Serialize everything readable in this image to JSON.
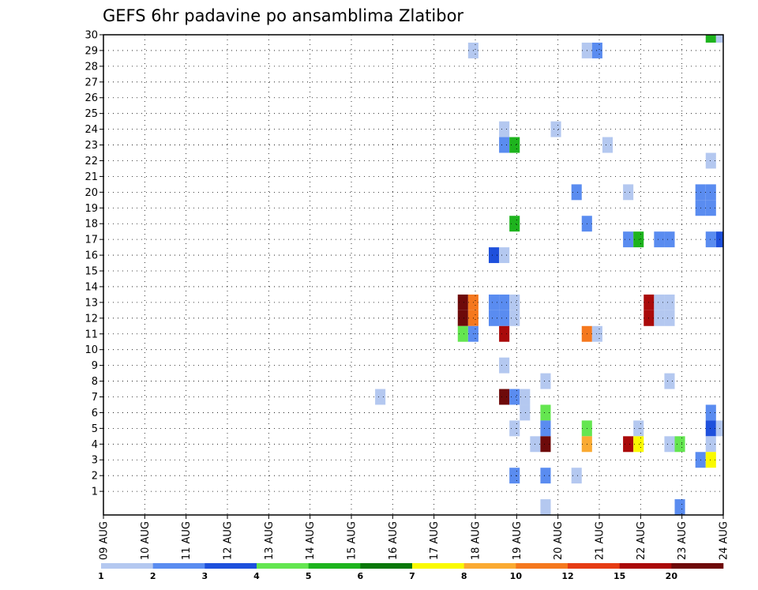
{
  "chart_data": {
    "type": "heatmap",
    "title": "GEFS 6hr padavine po ansamblima Zlatibor",
    "xlabel": "",
    "ylabel": "",
    "y_ticks": [
      1,
      2,
      3,
      4,
      5,
      6,
      7,
      8,
      9,
      10,
      11,
      12,
      13,
      14,
      15,
      16,
      17,
      18,
      19,
      20,
      21,
      22,
      23,
      24,
      25,
      26,
      27,
      28,
      29,
      30
    ],
    "y_range": [
      0,
      30
    ],
    "x_ticks": [
      "09 AUG",
      "10 AUG",
      "11 AUG",
      "12 AUG",
      "13 AUG",
      "14 AUG",
      "15 AUG",
      "16 AUG",
      "17 AUG",
      "18 AUG",
      "19 AUG",
      "20 AUG",
      "21 AUG",
      "22 AUG",
      "23 AUG",
      "24 AUG"
    ],
    "x_range_days": [
      0,
      15
    ],
    "grid": true,
    "legend": {
      "placement": "bottom",
      "levels": [
        "1",
        "2",
        "3",
        "4",
        "5",
        "6",
        "7",
        "8",
        "10",
        "12",
        "15",
        "20"
      ],
      "colors": [
        "#b4c8f0",
        "#5a8cf0",
        "#1e50dc",
        "#64e650",
        "#1eb41e",
        "#0a780a",
        "#fafa00",
        "#faaa32",
        "#f5781e",
        "#e63c14",
        "#aa0a0a",
        "#6e0a0a"
      ]
    },
    "cells": [
      {
        "day": 14.7,
        "ensemble": 30,
        "color": "#1eb41e"
      },
      {
        "day": 14.95,
        "ensemble": 30,
        "color": "#b4c8f0"
      },
      {
        "day": 8.95,
        "ensemble": 29,
        "color": "#b4c8f0"
      },
      {
        "day": 11.7,
        "ensemble": 29,
        "color": "#b4c8f0"
      },
      {
        "day": 11.95,
        "ensemble": 29,
        "color": "#5a8cf0"
      },
      {
        "day": 9.7,
        "ensemble": 24,
        "color": "#b4c8f0"
      },
      {
        "day": 10.95,
        "ensemble": 24,
        "color": "#b4c8f0"
      },
      {
        "day": 9.7,
        "ensemble": 23,
        "color": "#5a8cf0"
      },
      {
        "day": 9.95,
        "ensemble": 23,
        "color": "#1eb41e"
      },
      {
        "day": 12.2,
        "ensemble": 23,
        "color": "#b4c8f0"
      },
      {
        "day": 14.7,
        "ensemble": 22,
        "color": "#b4c8f0"
      },
      {
        "day": 11.45,
        "ensemble": 20,
        "color": "#5a8cf0"
      },
      {
        "day": 12.7,
        "ensemble": 20,
        "color": "#b4c8f0"
      },
      {
        "day": 14.45,
        "ensemble": 20,
        "color": "#5a8cf0"
      },
      {
        "day": 14.7,
        "ensemble": 20,
        "color": "#5a8cf0"
      },
      {
        "day": 14.45,
        "ensemble": 19,
        "color": "#5a8cf0"
      },
      {
        "day": 14.7,
        "ensemble": 19,
        "color": "#5a8cf0"
      },
      {
        "day": 9.95,
        "ensemble": 18,
        "color": "#1eb41e"
      },
      {
        "day": 11.7,
        "ensemble": 18,
        "color": "#5a8cf0"
      },
      {
        "day": 12.7,
        "ensemble": 17,
        "color": "#5a8cf0"
      },
      {
        "day": 12.95,
        "ensemble": 17,
        "color": "#1eb41e"
      },
      {
        "day": 13.45,
        "ensemble": 17,
        "color": "#5a8cf0"
      },
      {
        "day": 13.7,
        "ensemble": 17,
        "color": "#5a8cf0"
      },
      {
        "day": 14.7,
        "ensemble": 17,
        "color": "#5a8cf0"
      },
      {
        "day": 14.95,
        "ensemble": 17,
        "color": "#1e50dc"
      },
      {
        "day": 9.45,
        "ensemble": 16,
        "color": "#1e50dc"
      },
      {
        "day": 9.7,
        "ensemble": 16,
        "color": "#b4c8f0"
      },
      {
        "day": 8.7,
        "ensemble": 13,
        "color": "#6e0a0a"
      },
      {
        "day": 8.95,
        "ensemble": 13,
        "color": "#f5781e"
      },
      {
        "day": 9.45,
        "ensemble": 13,
        "color": "#5a8cf0"
      },
      {
        "day": 9.7,
        "ensemble": 13,
        "color": "#5a8cf0"
      },
      {
        "day": 9.95,
        "ensemble": 13,
        "color": "#b4c8f0"
      },
      {
        "day": 13.2,
        "ensemble": 13,
        "color": "#aa0a0a"
      },
      {
        "day": 13.45,
        "ensemble": 13,
        "color": "#b4c8f0"
      },
      {
        "day": 13.7,
        "ensemble": 13,
        "color": "#b4c8f0"
      },
      {
        "day": 8.7,
        "ensemble": 12,
        "color": "#6e0a0a"
      },
      {
        "day": 8.95,
        "ensemble": 12,
        "color": "#f5781e"
      },
      {
        "day": 9.45,
        "ensemble": 12,
        "color": "#5a8cf0"
      },
      {
        "day": 9.7,
        "ensemble": 12,
        "color": "#5a8cf0"
      },
      {
        "day": 9.95,
        "ensemble": 12,
        "color": "#b4c8f0"
      },
      {
        "day": 13.2,
        "ensemble": 12,
        "color": "#aa0a0a"
      },
      {
        "day": 13.45,
        "ensemble": 12,
        "color": "#b4c8f0"
      },
      {
        "day": 13.7,
        "ensemble": 12,
        "color": "#b4c8f0"
      },
      {
        "day": 8.7,
        "ensemble": 11,
        "color": "#64e650"
      },
      {
        "day": 8.95,
        "ensemble": 11,
        "color": "#5a8cf0"
      },
      {
        "day": 9.7,
        "ensemble": 11,
        "color": "#aa0a0a"
      },
      {
        "day": 11.7,
        "ensemble": 11,
        "color": "#f5781e"
      },
      {
        "day": 11.95,
        "ensemble": 11,
        "color": "#b4c8f0"
      },
      {
        "day": 9.7,
        "ensemble": 9,
        "color": "#b4c8f0"
      },
      {
        "day": 10.7,
        "ensemble": 8,
        "color": "#b4c8f0"
      },
      {
        "day": 13.7,
        "ensemble": 8,
        "color": "#b4c8f0"
      },
      {
        "day": 6.7,
        "ensemble": 7,
        "color": "#b4c8f0"
      },
      {
        "day": 9.7,
        "ensemble": 7,
        "color": "#6e0a0a"
      },
      {
        "day": 9.95,
        "ensemble": 7,
        "color": "#5a8cf0"
      },
      {
        "day": 10.2,
        "ensemble": 7,
        "color": "#b4c8f0"
      },
      {
        "day": 10.2,
        "ensemble": 6,
        "color": "#b4c8f0"
      },
      {
        "day": 10.7,
        "ensemble": 6,
        "color": "#64e650"
      },
      {
        "day": 14.7,
        "ensemble": 6,
        "color": "#5a8cf0"
      },
      {
        "day": 9.95,
        "ensemble": 5,
        "color": "#b4c8f0"
      },
      {
        "day": 10.7,
        "ensemble": 5,
        "color": "#5a8cf0"
      },
      {
        "day": 11.7,
        "ensemble": 5,
        "color": "#64e650"
      },
      {
        "day": 12.95,
        "ensemble": 5,
        "color": "#b4c8f0"
      },
      {
        "day": 14.7,
        "ensemble": 5,
        "color": "#1e50dc"
      },
      {
        "day": 14.95,
        "ensemble": 5,
        "color": "#b4c8f0"
      },
      {
        "day": 10.45,
        "ensemble": 4,
        "color": "#b4c8f0"
      },
      {
        "day": 10.7,
        "ensemble": 4,
        "color": "#6e0a0a"
      },
      {
        "day": 11.7,
        "ensemble": 4,
        "color": "#faaa32"
      },
      {
        "day": 12.7,
        "ensemble": 4,
        "color": "#aa0a0a"
      },
      {
        "day": 12.95,
        "ensemble": 4,
        "color": "#fafa00"
      },
      {
        "day": 13.7,
        "ensemble": 4,
        "color": "#b4c8f0"
      },
      {
        "day": 13.95,
        "ensemble": 4,
        "color": "#64e650"
      },
      {
        "day": 14.7,
        "ensemble": 4,
        "color": "#b4c8f0"
      },
      {
        "day": 14.45,
        "ensemble": 3,
        "color": "#5a8cf0"
      },
      {
        "day": 14.7,
        "ensemble": 3,
        "color": "#fafa00"
      },
      {
        "day": 9.95,
        "ensemble": 2,
        "color": "#5a8cf0"
      },
      {
        "day": 10.7,
        "ensemble": 2,
        "color": "#5a8cf0"
      },
      {
        "day": 11.45,
        "ensemble": 2,
        "color": "#b4c8f0"
      },
      {
        "day": 10.7,
        "ensemble": 0,
        "color": "#b4c8f0"
      },
      {
        "day": 13.95,
        "ensemble": 0,
        "color": "#5a8cf0"
      }
    ]
  }
}
